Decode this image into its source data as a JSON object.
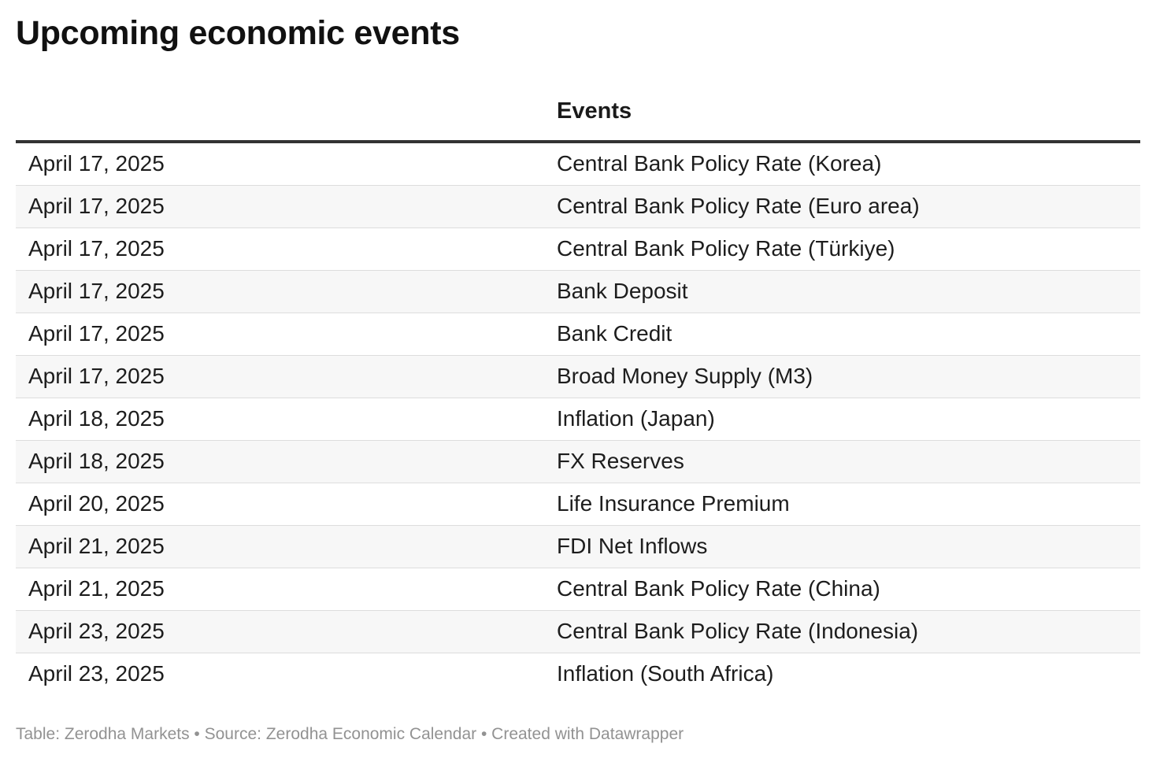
{
  "title": "Upcoming economic events",
  "table": {
    "columns": [
      "",
      "Events"
    ]
  },
  "chart_data": {
    "type": "table",
    "title": "Upcoming economic events",
    "columns": [
      "",
      "Events"
    ],
    "rows": [
      {
        "date": "April 17, 2025",
        "event": "Central Bank Policy Rate (Korea)"
      },
      {
        "date": "April 17, 2025",
        "event": "Central Bank Policy Rate (Euro area)"
      },
      {
        "date": "April 17, 2025",
        "event": "Central Bank Policy Rate (Türkiye)"
      },
      {
        "date": "April 17, 2025",
        "event": "Bank Deposit"
      },
      {
        "date": "April 17, 2025",
        "event": "Bank Credit"
      },
      {
        "date": "April 17, 2025",
        "event": "Broad Money Supply (M3)"
      },
      {
        "date": "April 18, 2025",
        "event": "Inflation (Japan)"
      },
      {
        "date": "April 18, 2025",
        "event": "FX Reserves"
      },
      {
        "date": "April 20, 2025",
        "event": "Life Insurance Premium"
      },
      {
        "date": "April 21, 2025",
        "event": "FDI Net Inflows"
      },
      {
        "date": "April 21, 2025",
        "event": "Central Bank Policy Rate (China)"
      },
      {
        "date": "April 23, 2025",
        "event": "Central Bank Policy Rate (Indonesia)"
      },
      {
        "date": "April 23, 2025",
        "event": "Inflation (South Africa)"
      }
    ]
  },
  "footer": {
    "text": "Table: Zerodha Markets • Source: Zerodha Economic Calendar • Created with Datawrapper"
  }
}
